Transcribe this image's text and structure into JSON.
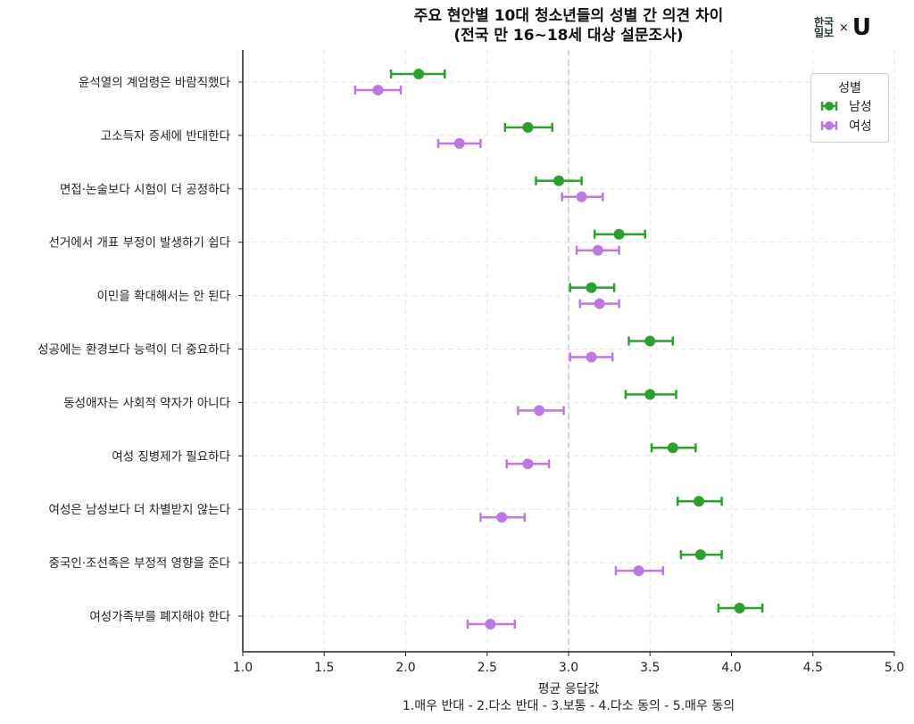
{
  "chart_data": {
    "type": "dot-errorbar",
    "title_line1": "주요 현안별 10대 청소년들의 성별 간 의견 차이",
    "title_line2": "(전국 만 16~18세 대상 설문조사)",
    "xlabel_line1": "평균 응답값",
    "xlabel_line2": "1.매우 반대 - 2.다소 반대 - 3.보통 - 4.다소 동의 - 5.매우 동의",
    "xlim": [
      1.0,
      5.0
    ],
    "xticks": [
      "1.0",
      "1.5",
      "2.0",
      "2.5",
      "3.0",
      "3.5",
      "4.0",
      "4.5",
      "5.0"
    ],
    "reference_line": 3.0,
    "legend_title": "성별",
    "categories": [
      "윤석열의 계엄령은 바람직했다",
      "고소득자 증세에 반대한다",
      "면접·논술보다 시험이 더 공정하다",
      "선거에서 개표 부정이 발생하기 쉽다",
      "이민을 확대해서는 안 된다",
      "성공에는 환경보다 능력이 더 중요하다",
      "동성애자는 사회적 약자가 아니다",
      "여성 징병제가 필요하다",
      "여성은 남성보다 더 차별받지 않는다",
      "중국인·조선족은 부정적 영향을 준다",
      "여성가족부를 폐지해야 한다"
    ],
    "series": [
      {
        "name": "남성",
        "color": "#2ca02c",
        "values": [
          2.08,
          2.75,
          2.94,
          3.31,
          3.14,
          3.5,
          3.5,
          3.64,
          3.8,
          3.81,
          4.05
        ],
        "lower": [
          1.91,
          2.61,
          2.8,
          3.16,
          3.01,
          3.37,
          3.35,
          3.51,
          3.67,
          3.69,
          3.92
        ],
        "upper": [
          2.24,
          2.9,
          3.08,
          3.47,
          3.28,
          3.64,
          3.66,
          3.78,
          3.94,
          3.94,
          4.19
        ]
      },
      {
        "name": "여성",
        "color": "#bf77e2",
        "values": [
          1.83,
          2.33,
          3.08,
          3.18,
          3.19,
          3.14,
          2.82,
          2.75,
          2.59,
          3.43,
          2.52
        ],
        "lower": [
          1.69,
          2.2,
          2.96,
          3.05,
          3.07,
          3.01,
          2.69,
          2.62,
          2.46,
          3.29,
          2.38
        ],
        "upper": [
          1.97,
          2.46,
          3.21,
          3.31,
          3.31,
          3.27,
          2.97,
          2.88,
          2.73,
          3.58,
          2.67
        ]
      }
    ]
  },
  "logo": {
    "line1": "한국",
    "line2": "일보",
    "x": "×",
    "u": "U"
  }
}
